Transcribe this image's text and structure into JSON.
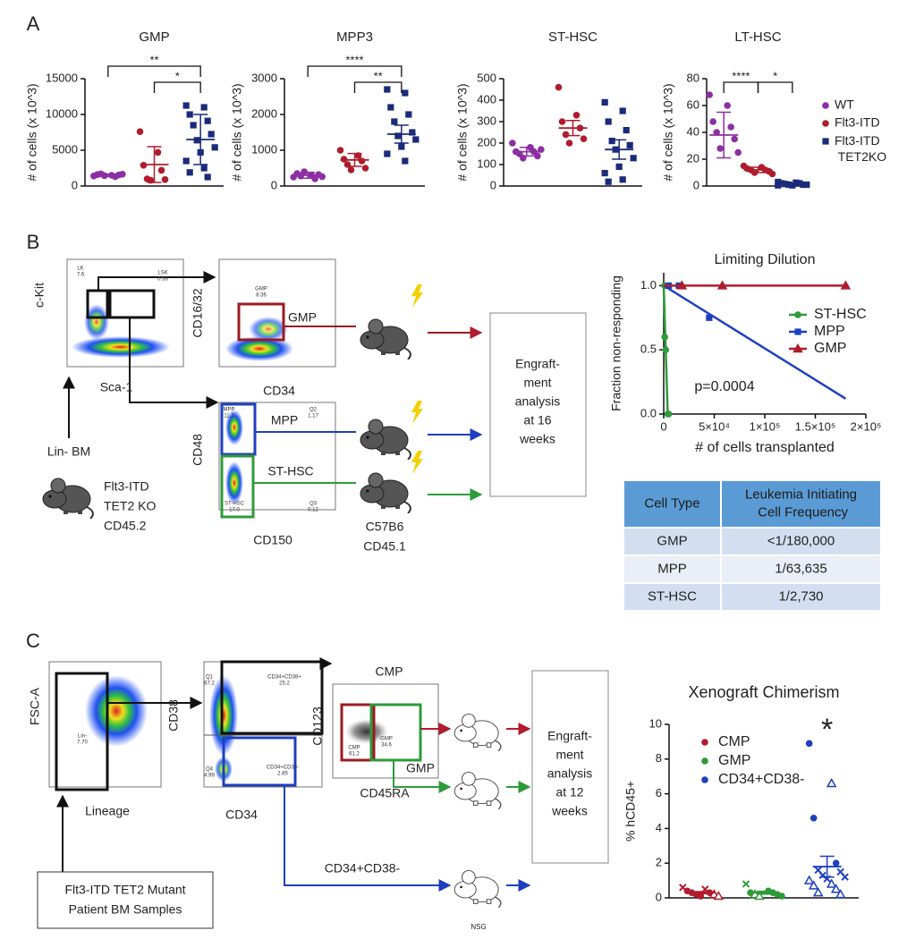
{
  "chart_data": [
    {
      "type": "dot",
      "title": "GMP",
      "ylabel": "# of cells (x 10^3)",
      "ylim": [
        0,
        15000
      ],
      "yticks": [
        0,
        5000,
        10000,
        15000
      ],
      "series": [
        {
          "name": "WT",
          "color": "#8b2fa3",
          "marker": "circle",
          "values": [
            1400,
            1500,
            1600,
            1300,
            1700,
            1550,
            1450,
            1650
          ],
          "mean": 1500,
          "error": 150
        },
        {
          "name": "Flt3-ITD",
          "color": "#b01c2e",
          "marker": "circle",
          "values": [
            7600,
            4700,
            2900,
            2200,
            1000,
            900,
            800
          ],
          "mean": 3000,
          "error": 2500
        },
        {
          "name": "Flt3-ITD TET2KO",
          "color": "#1c2a7a",
          "marker": "square",
          "values": [
            11250,
            11000,
            10000,
            9100,
            8500,
            7250,
            6400,
            5400,
            4700,
            3500,
            2500,
            1900,
            1250
          ],
          "mean": 6500,
          "error": 3500
        }
      ],
      "brackets": [
        {
          "text": "**",
          "between": [
            "WT",
            "Flt3-ITD TET2KO"
          ]
        },
        {
          "text": "*",
          "between": [
            "Flt3-ITD",
            "Flt3-ITD TET2KO"
          ]
        }
      ]
    },
    {
      "type": "dot",
      "title": "MPP3",
      "ylabel": "# of cells (x 10^3)",
      "ylim": [
        0,
        3000
      ],
      "yticks": [
        0,
        1000,
        2000,
        3000
      ],
      "series": [
        {
          "name": "WT",
          "color": "#8b2fa3",
          "marker": "circle",
          "values": [
            250,
            300,
            350,
            200,
            280,
            320,
            400,
            260
          ],
          "mean": 300,
          "error": 80
        },
        {
          "name": "Flt3-ITD",
          "color": "#b01c2e",
          "marker": "circle",
          "values": [
            1000,
            850,
            750,
            700,
            600,
            500,
            450
          ],
          "mean": 730,
          "error": 180
        },
        {
          "name": "Flt3-ITD TET2KO",
          "color": "#1c2a7a",
          "marker": "square",
          "values": [
            2700,
            2600,
            2200,
            2000,
            1800,
            1500,
            1400,
            1300,
            1100,
            900,
            700
          ],
          "mean": 1450,
          "error": 250
        }
      ],
      "brackets": [
        {
          "text": "****",
          "between": [
            "WT",
            "Flt3-ITD TET2KO"
          ]
        },
        {
          "text": "**",
          "between": [
            "Flt3-ITD",
            "Flt3-ITD TET2KO"
          ]
        }
      ]
    },
    {
      "type": "dot",
      "title": "ST-HSC",
      "ylabel": "# of cells (x 10^3)",
      "ylim": [
        0,
        500
      ],
      "yticks": [
        0,
        100,
        200,
        300,
        400,
        500
      ],
      "series": [
        {
          "name": "WT",
          "color": "#8b2fa3",
          "marker": "circle",
          "values": [
            200,
            180,
            160,
            160,
            150,
            140,
            130,
            170
          ],
          "mean": 160,
          "error": 20
        },
        {
          "name": "Flt3-ITD",
          "color": "#b01c2e",
          "marker": "circle",
          "values": [
            460,
            330,
            300,
            270,
            240,
            220,
            200
          ],
          "mean": 270,
          "error": 35
        },
        {
          "name": "Flt3-ITD TET2KO",
          "color": "#1c2a7a",
          "marker": "square",
          "values": [
            390,
            350,
            300,
            260,
            210,
            190,
            170,
            130,
            90,
            60,
            30,
            20
          ],
          "mean": 170,
          "error": 45
        }
      ]
    },
    {
      "type": "dot",
      "title": "LT-HSC",
      "ylabel": "# of cells (x 10^3)",
      "ylim": [
        0,
        80
      ],
      "yticks": [
        0,
        20,
        40,
        60,
        80
      ],
      "legend": "right",
      "series": [
        {
          "name": "WT",
          "color": "#8b2fa3",
          "marker": "circle",
          "values": [
            68,
            60,
            48,
            44,
            40,
            35,
            28,
            25
          ],
          "mean": 38,
          "error": 17
        },
        {
          "name": "Flt3-ITD",
          "color": "#b01c2e",
          "marker": "circle",
          "values": [
            15,
            14,
            13,
            12,
            12,
            11,
            10,
            9
          ],
          "mean": 12,
          "error": 2
        },
        {
          "name": "Flt3-ITD TET2KO",
          "color": "#1c2a7a",
          "marker": "square",
          "values": [
            3,
            2.5,
            2,
            2,
            1.5,
            1,
            1,
            1,
            0.5,
            0.5
          ],
          "mean": 1.5,
          "error": 0.5
        }
      ],
      "brackets": [
        {
          "text": "****",
          "between": [
            "WT",
            "Flt3-ITD"
          ]
        },
        {
          "text": "*",
          "between": [
            "Flt3-ITD",
            "Flt3-ITD TET2KO"
          ]
        }
      ]
    },
    {
      "type": "line",
      "title": "Limiting Dilution",
      "xlabel": "# of cells transplanted",
      "ylabel": "Fraction non-responding",
      "annotation": "p=0.0004",
      "xlim": [
        0,
        200000
      ],
      "xticks": [
        0,
        {
          "value": 50000,
          "label": "5×10⁴"
        },
        {
          "value": 100000,
          "label": "1×10⁵"
        },
        {
          "value": 150000,
          "label": "1.5×10⁵"
        },
        {
          "value": 200000,
          "label": "2×10⁵"
        }
      ],
      "ylim": [
        0,
        1.1
      ],
      "yticks": [
        {
          "value": 0,
          "label": "0.0"
        },
        {
          "value": 0.5,
          "label": "0.5"
        },
        {
          "value": 1,
          "label": "1.0"
        }
      ],
      "legend": "right",
      "series": [
        {
          "name": "ST-HSC",
          "color": "#2e9b3a",
          "marker": "circle",
          "x": [
            1000,
            1000,
            2000,
            4000,
            5000
          ],
          "values": [
            1,
            0.6,
            0.5,
            0,
            0
          ],
          "fit_x": [
            0,
            4000
          ],
          "fit_y": [
            1,
            0
          ]
        },
        {
          "name": "MPP",
          "color": "#1f3fbf",
          "marker": "square",
          "x": [
            5000,
            15000,
            45000
          ],
          "values": [
            1,
            1,
            0.75
          ],
          "fit_x": [
            0,
            180000
          ],
          "fit_y": [
            1,
            0.12
          ]
        },
        {
          "name": "GMP",
          "color": "#b01c2e",
          "marker": "triangle",
          "x": [
            18000,
            58000,
            180000
          ],
          "values": [
            1,
            1,
            1
          ],
          "fit_x": [
            0,
            180000
          ],
          "fit_y": [
            1,
            1
          ]
        }
      ]
    },
    {
      "type": "dot",
      "title": "Xenograft Chimerism",
      "ylabel": "% hCD45+",
      "ylim": [
        0,
        10
      ],
      "yticks": [
        0,
        2,
        4,
        6,
        8,
        10
      ],
      "legend": "top-left",
      "series": [
        {
          "name": "CMP",
          "color": "#b01c2e",
          "values": [
            0.6,
            0.5,
            0.4,
            0.3,
            0.3,
            0.2,
            0.2,
            0.1,
            0.1
          ],
          "markers": [
            "x",
            "x",
            "circle",
            "circle",
            "circle",
            "triangle-open",
            "circle",
            "triangle-open",
            "circle"
          ],
          "mean": 0.3,
          "error": 0.06
        },
        {
          "name": "GMP",
          "color": "#2e9b3a",
          "values": [
            0.8,
            0.4,
            0.3,
            0.3,
            0.2,
            0.2,
            0.1,
            0.1
          ],
          "markers": [
            "x",
            "circle",
            "circle",
            "circle",
            "triangle-open",
            "circle",
            "triangle-open",
            "circle"
          ],
          "mean": 0.3,
          "error": 0.08
        },
        {
          "name": "CD34+CD38-",
          "color": "#1f3fbf",
          "values": [
            8.9,
            6.6,
            4.6,
            2.0,
            1.6,
            1.5,
            1.3,
            1.2,
            1.1,
            1.0,
            0.8,
            0.7,
            0.5,
            0.3,
            0.2
          ],
          "markers": [
            "circle",
            "triangle-open",
            "circle",
            "circle",
            "x",
            "x",
            "x",
            "x",
            "x",
            "triangle-open",
            "triangle-open",
            "triangle-open",
            "triangle-open",
            "triangle-open",
            "triangle-open"
          ],
          "mean": 1.8,
          "error": 0.6
        }
      ],
      "significance": [
        {
          "text": "*",
          "over": "CD34+CD38-"
        }
      ]
    }
  ],
  "table": {
    "header": [
      "Cell Type",
      "Leukemia Initiating  Cell Frequency"
    ],
    "rows": [
      [
        "GMP",
        "<1/180,000"
      ],
      [
        "MPP",
        "1/63,635"
      ],
      [
        "ST-HSC",
        "1/2,730"
      ]
    ]
  },
  "diagram": {
    "panels": [
      "A",
      "B",
      "C"
    ],
    "b": {
      "ckit": "c-Kit",
      "sca1": "Sca-1",
      "lk": [
        "LK",
        "7.6"
      ],
      "lsk": [
        "LSK",
        "0.56"
      ],
      "cd1632": "CD16/32",
      "cd34": "CD34",
      "gmp_gate": [
        "GMP",
        "8.36"
      ],
      "gmp": "GMP",
      "cd48": "CD48",
      "cd150": "CD150",
      "mpp_gate": [
        "MPP",
        "11.7"
      ],
      "q2": [
        "Q2",
        "1.17"
      ],
      "sthsc_gate": [
        "ST-HSC",
        "17.0"
      ],
      "q3": [
        "Q3",
        "0.12"
      ],
      "mpp": "MPP",
      "sthsc": "ST-HSC",
      "lin_bm": "Lin- BM",
      "donor": [
        "Flt3-ITD",
        "TET2 KO",
        "CD45.2"
      ],
      "recipient": [
        "C57B6",
        "CD45.1"
      ],
      "engraft": [
        "Engraft-",
        "ment",
        "analysis",
        "at 16",
        "weeks"
      ]
    },
    "c": {
      "fsc": "FSC-A",
      "lineage": "Lineage",
      "lin_gate": [
        "Lin-",
        "7.70"
      ],
      "cd38": "CD38",
      "cd34": "CD34",
      "q1": [
        "Q1",
        "67.2"
      ],
      "dp": [
        "CD34+CD38+",
        "25.2"
      ],
      "q4": [
        "Q4",
        "4.99"
      ],
      "dn": [
        "CD34+CD38-",
        "2.85"
      ],
      "cmp_title": "CMP",
      "cd123": "CD123",
      "cd45ra": "CD45RA",
      "cmp_gate": [
        "CMP",
        "61.2"
      ],
      "gmp_gate": [
        "GMP",
        "34.6"
      ],
      "gmp": "GMP",
      "cd34cd38": "CD34+CD38-",
      "samples": [
        "Flt3-ITD TET2 Mutant",
        "Patient BM Samples"
      ],
      "nsg": "NSG",
      "engraft": [
        "Engraft-",
        "ment",
        "analysis",
        "at 12",
        "weeks"
      ]
    }
  }
}
